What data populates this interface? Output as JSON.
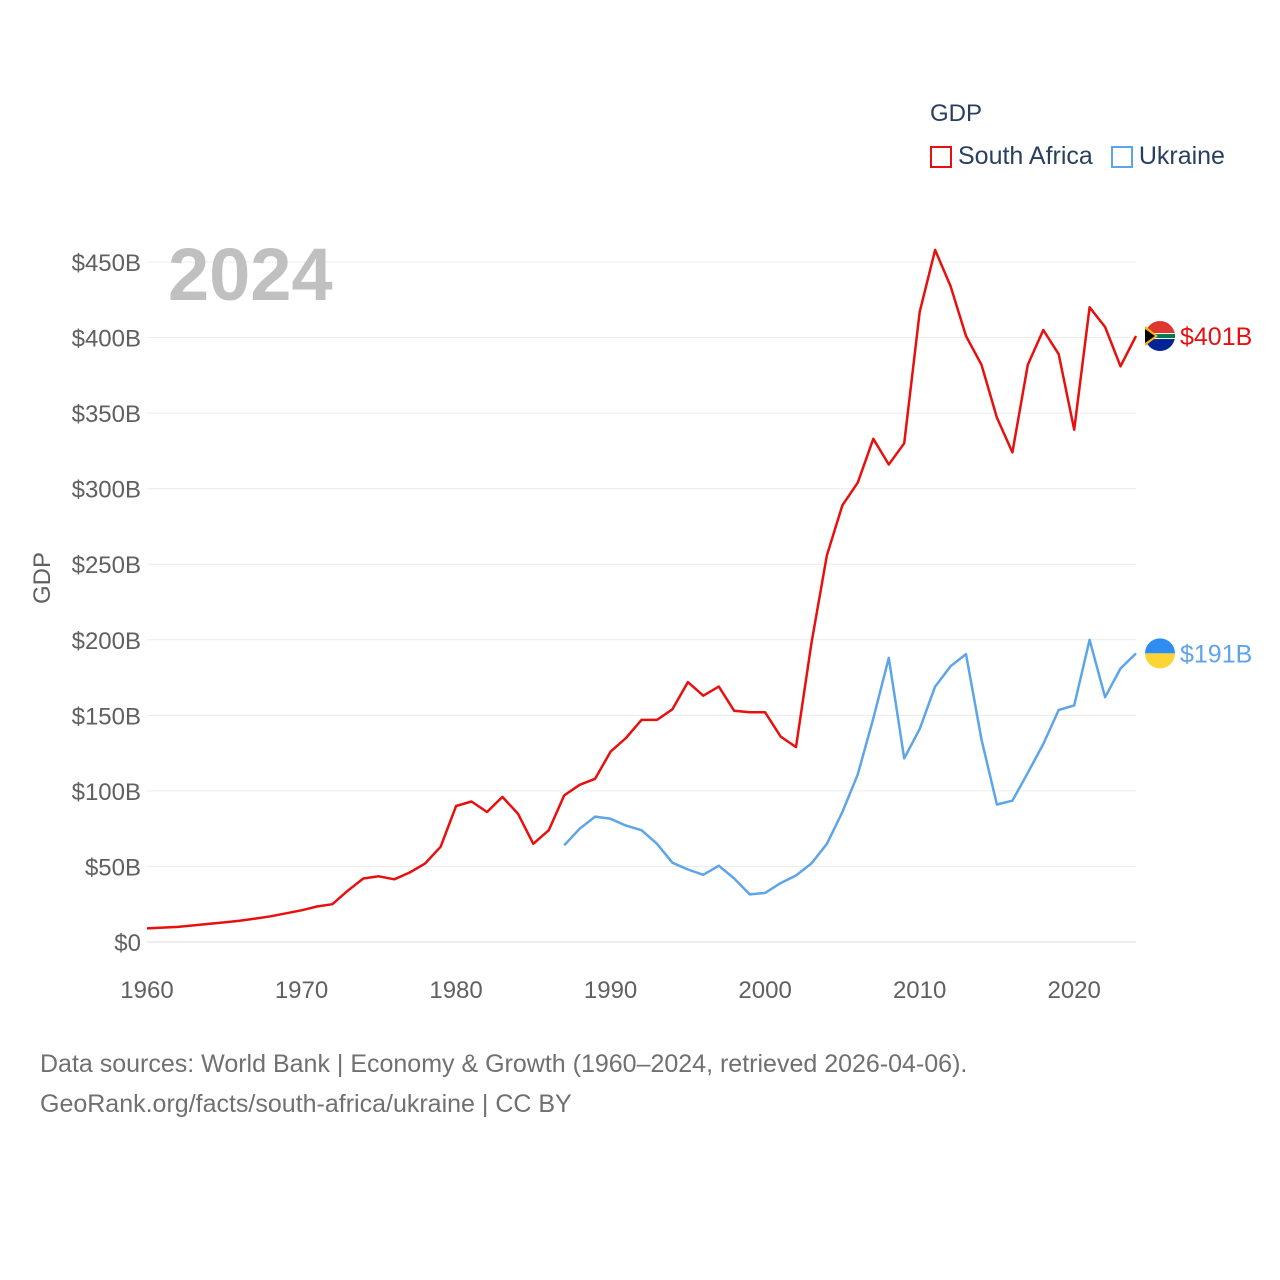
{
  "legend": {
    "title": "GDP",
    "items": [
      {
        "name": "South Africa",
        "color": "#e8100f"
      },
      {
        "name": "Ukraine",
        "color": "#5da5e8"
      }
    ]
  },
  "year_label": "2024",
  "footer": {
    "line1": "Data sources: World Bank | Economy & Growth (1960–2024, retrieved 2026-04-06).",
    "line2": "GeoRank.org/facts/south-africa/ukraine | CC BY"
  },
  "chart_data": {
    "type": "line",
    "title": "GDP",
    "xlabel": "",
    "ylabel": "GDP",
    "xlim": [
      1960,
      2024
    ],
    "ylim": [
      0,
      450
    ],
    "x_ticks": [
      1960,
      1970,
      1980,
      1990,
      2000,
      2010,
      2020
    ],
    "y_ticks": [
      0,
      50,
      100,
      150,
      200,
      250,
      300,
      350,
      400,
      450
    ],
    "y_tick_labels": [
      "$0",
      "$50B",
      "$100B",
      "$150B",
      "$200B",
      "$250B",
      "$300B",
      "$350B",
      "$400B",
      "$450B"
    ],
    "grid": true,
    "legend_position": "top-right",
    "units": "billions of US dollars",
    "series": [
      {
        "name": "South Africa",
        "color": "#e8100f",
        "end_label": "$401B",
        "x": [
          1960,
          1961,
          1962,
          1963,
          1964,
          1965,
          1966,
          1967,
          1968,
          1969,
          1970,
          1971,
          1972,
          1973,
          1974,
          1975,
          1976,
          1977,
          1978,
          1979,
          1980,
          1981,
          1982,
          1983,
          1984,
          1985,
          1986,
          1987,
          1988,
          1989,
          1990,
          1991,
          1992,
          1993,
          1994,
          1995,
          1996,
          1997,
          1998,
          1999,
          2000,
          2001,
          2002,
          2003,
          2004,
          2005,
          2006,
          2007,
          2008,
          2009,
          2010,
          2011,
          2012,
          2013,
          2014,
          2015,
          2016,
          2017,
          2018,
          2019,
          2020,
          2021,
          2022,
          2023,
          2024
        ],
        "values": [
          9,
          9.5,
          10,
          11,
          12,
          13,
          14,
          15.5,
          17,
          19,
          21,
          23.5,
          25,
          34,
          42,
          43.5,
          41.5,
          46,
          52,
          63,
          90,
          93,
          86,
          96,
          85,
          65,
          74,
          97,
          104,
          108,
          126,
          135,
          147,
          147,
          154,
          172,
          163,
          169,
          153,
          152,
          152,
          136,
          129,
          198,
          256,
          289,
          304,
          333,
          316,
          330,
          417,
          458,
          434,
          401,
          382,
          347,
          324,
          382,
          405,
          389,
          339,
          420,
          407,
          381,
          401
        ]
      },
      {
        "name": "Ukraine",
        "color": "#5da5e8",
        "end_label": "$191B",
        "x": [
          1987,
          1988,
          1989,
          1990,
          1991,
          1992,
          1993,
          1994,
          1995,
          1996,
          1997,
          1998,
          1999,
          2000,
          2001,
          2002,
          2003,
          2004,
          2005,
          2006,
          2007,
          2008,
          2009,
          2010,
          2011,
          2012,
          2013,
          2014,
          2015,
          2016,
          2017,
          2018,
          2019,
          2020,
          2021,
          2022,
          2023,
          2024
        ],
        "values": [
          64,
          75,
          83,
          81.5,
          77,
          74,
          65,
          52.5,
          48,
          44.5,
          50.5,
          42,
          31.5,
          32.5,
          39,
          44,
          52,
          65,
          86,
          111,
          148,
          188,
          121.5,
          141,
          169,
          182.5,
          190.5,
          134,
          91,
          93.5,
          112,
          131,
          153.5,
          156.6,
          200,
          162,
          181,
          191
        ]
      }
    ]
  }
}
